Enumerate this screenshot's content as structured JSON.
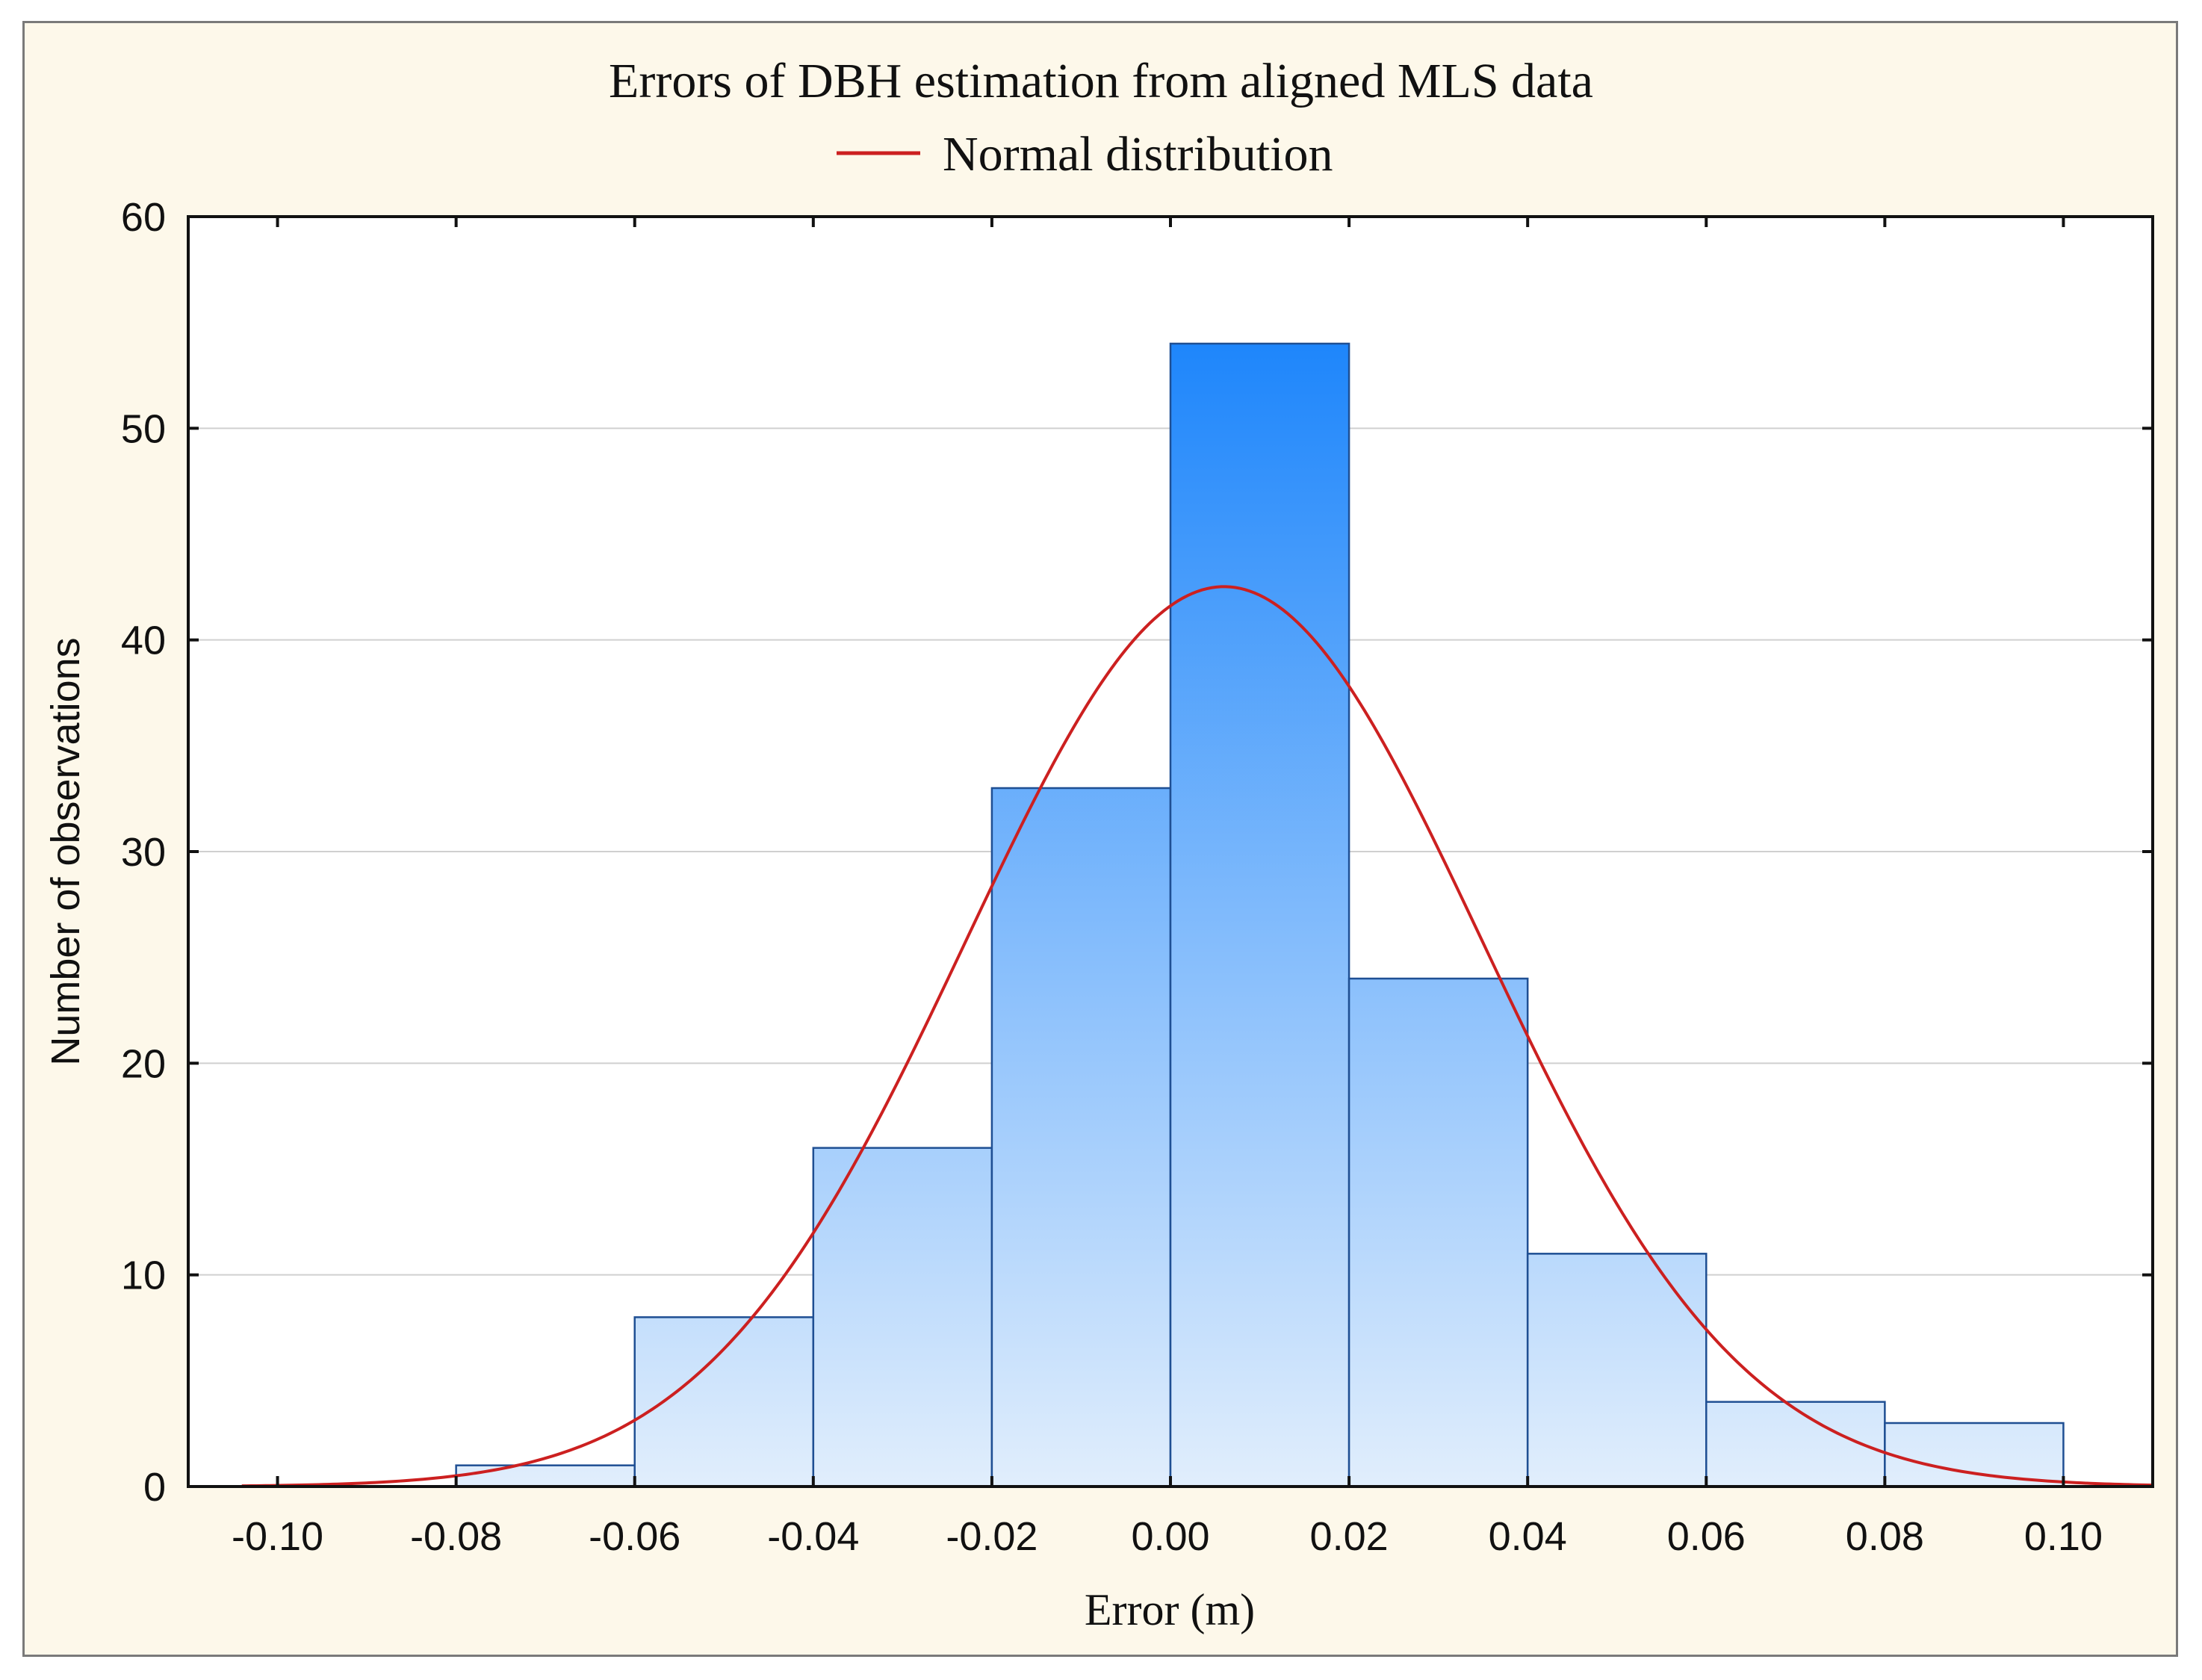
{
  "chart_data": {
    "type": "bar",
    "title": "Errors of DBH estimation from aligned MLS data",
    "legend": [
      {
        "label": "Normal distribution",
        "color": "#cc2020",
        "kind": "line"
      }
    ],
    "legend_position": "top-center",
    "xlabel": "Error (m)",
    "ylabel": "Number of observations",
    "xlim": [
      -0.11,
      0.11
    ],
    "ylim": [
      0,
      60
    ],
    "x_ticks": [
      -0.1,
      -0.08,
      -0.06,
      -0.04,
      -0.02,
      0.0,
      0.02,
      0.04,
      0.06,
      0.08,
      0.1
    ],
    "x_tick_labels": [
      "-0.10",
      "-0.08",
      "-0.06",
      "-0.04",
      "-0.02",
      "0.00",
      "0.02",
      "0.04",
      "0.06",
      "0.08",
      "0.10"
    ],
    "y_ticks": [
      0,
      10,
      20,
      30,
      40,
      50,
      60
    ],
    "y_tick_labels": [
      "0",
      "10",
      "20",
      "30",
      "40",
      "50",
      "60"
    ],
    "grid": true,
    "bins": [
      {
        "from": -0.08,
        "to": -0.06,
        "count": 1
      },
      {
        "from": -0.06,
        "to": -0.04,
        "count": 8
      },
      {
        "from": -0.04,
        "to": -0.02,
        "count": 16
      },
      {
        "from": -0.02,
        "to": 0.0,
        "count": 33
      },
      {
        "from": 0.0,
        "to": 0.02,
        "count": 54
      },
      {
        "from": 0.02,
        "to": 0.04,
        "count": 24
      },
      {
        "from": 0.04,
        "to": 0.06,
        "count": 11
      },
      {
        "from": 0.06,
        "to": 0.08,
        "count": 4
      },
      {
        "from": 0.08,
        "to": 0.1,
        "count": 3
      }
    ],
    "normal_curve": {
      "mean": 0.006,
      "sd": 0.0289,
      "n": 154,
      "bin_width": 0.02,
      "x_range": [
        -0.104,
        0.11
      ]
    },
    "colors": {
      "bar_top": "#1e86fb",
      "bar_bottom": "#e1eefc",
      "bar_edge": "#1f4f93",
      "curve": "#cc2020",
      "grid": "#d0d0d0",
      "frame_bg": "#fdf8ea",
      "plot_bg": "#ffffff"
    }
  }
}
